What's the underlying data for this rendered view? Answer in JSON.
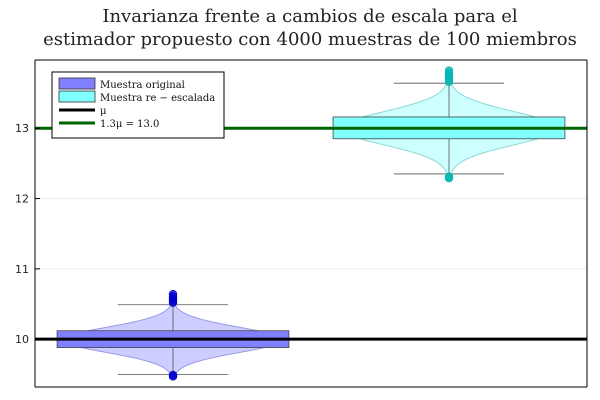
{
  "chart_data": {
    "type": "violin-box",
    "title_lines": [
      "Invarianza frente a cambios de escala para el",
      "estimador propuesto con 4000 muestras de 100 miembros"
    ],
    "ylim": [
      9.32,
      13.97
    ],
    "yticks": [
      10,
      11,
      12,
      13
    ],
    "ytick_labels": [
      "10",
      "11",
      "12",
      "13"
    ],
    "grid": true,
    "legend_position": "top-left",
    "series": [
      {
        "name": "Muestra original",
        "fill": "#8080ff",
        "violin_fill": "#c8c8ff",
        "violin_stroke": "#9a9ae6",
        "outlier_color": "#0000cc",
        "min": 9.5,
        "q1": 9.88,
        "median": 9.99,
        "q3": 10.12,
        "max": 10.49,
        "kde_low": 9.45,
        "kde_high": 10.64,
        "outliers": [
          9.47,
          9.49,
          10.52,
          10.55,
          10.58,
          10.61,
          10.64
        ]
      },
      {
        "name": "Muestra re − escalada",
        "fill": "#80ffff",
        "violin_fill": "#c8ffff",
        "violin_stroke": "#8ad8d8",
        "outlier_color": "#00b5b5",
        "min": 12.35,
        "q1": 12.85,
        "median": 13.0,
        "q3": 13.16,
        "max": 13.64,
        "kde_low": 12.29,
        "kde_high": 13.82,
        "outliers": [
          12.29,
          12.31,
          13.66,
          13.7,
          13.75,
          13.79,
          13.82
        ]
      }
    ],
    "hlines": [
      {
        "name": "μ",
        "y": 10.0,
        "color": "#000000"
      },
      {
        "name": "1.3μ = 13.0",
        "y": 13.0,
        "color": "#006400"
      }
    ]
  }
}
